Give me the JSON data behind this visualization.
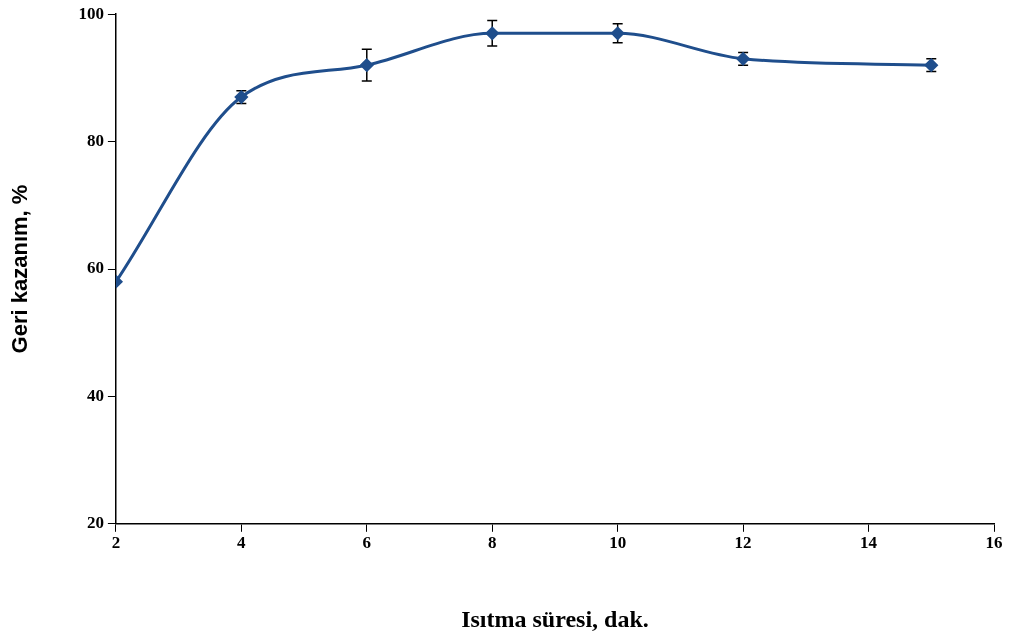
{
  "chart_data": {
    "type": "line",
    "xlabel": "Isıtma süresi, dak.",
    "ylabel": "Geri kazanım, %",
    "x": [
      2,
      4,
      6,
      8,
      10,
      12,
      15
    ],
    "series": [
      {
        "color": "#1f4e8c",
        "values": [
          58,
          87,
          92,
          97,
          97,
          93,
          92
        ],
        "errors": [
          null,
          1,
          2.5,
          2,
          1.5,
          1,
          1
        ]
      }
    ],
    "xlim": [
      2,
      16
    ],
    "xticks": [
      2,
      4,
      6,
      8,
      10,
      12,
      14,
      16
    ],
    "ylim": [
      20,
      100
    ],
    "yticks": [
      20,
      40,
      60,
      80,
      100
    ],
    "grid": false,
    "legend": false,
    "marker": "diamond",
    "line_style": "solid"
  }
}
